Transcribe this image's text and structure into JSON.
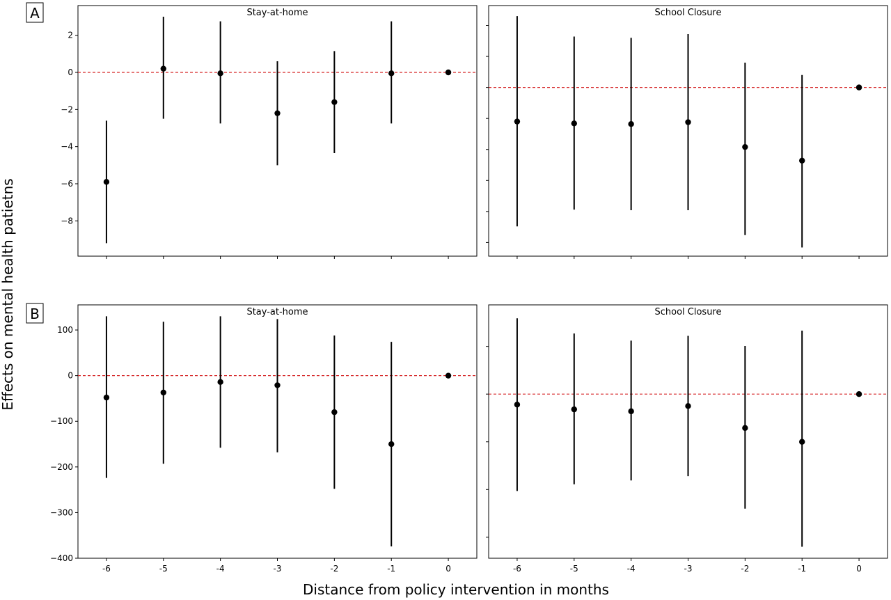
{
  "xlabel": "Distance from policy intervention in months",
  "ylabel": "Effects on mental health patietns",
  "chart_data": [
    {
      "type": "scatter",
      "panel": "A",
      "title": "Stay-at-home",
      "x": [
        -6,
        -5,
        -4,
        -3,
        -2,
        -1,
        0
      ],
      "y": [
        -5.9,
        0.2,
        -0.05,
        -2.2,
        -1.6,
        -0.05,
        0
      ],
      "ci_low": [
        -9.2,
        -2.5,
        -2.75,
        -5.0,
        -4.35,
        -2.75,
        0
      ],
      "ci_high": [
        -2.6,
        3.0,
        2.75,
        0.6,
        1.15,
        2.75,
        0
      ],
      "xlim": [
        -6.5,
        0.5
      ],
      "ylim": [
        -9.9,
        3.6
      ],
      "yticks": [
        2,
        0,
        -2,
        -4,
        -6,
        -8
      ],
      "yticklabels": [
        "2",
        "0",
        "−2",
        "−4",
        "−6",
        "−8"
      ],
      "reference_line": 0,
      "show_yticklabels": true
    },
    {
      "type": "scatter",
      "panel": "A",
      "title": "School Closure",
      "x": [
        -6,
        -5,
        -4,
        -3,
        -2,
        -1,
        0
      ],
      "y": [
        -2.75,
        -2.9,
        -2.95,
        -2.8,
        -4.8,
        -5.9,
        0
      ],
      "ci_low": [
        -11.2,
        -9.85,
        -9.9,
        -9.9,
        -11.9,
        -12.9,
        0
      ],
      "ci_high": [
        5.75,
        4.1,
        4.0,
        4.3,
        2.0,
        1.0,
        0
      ],
      "xlim": [
        -6.5,
        0.5
      ],
      "ylim": [
        -13.6,
        6.6
      ],
      "yticks": [
        5,
        2.5,
        0,
        -2.5,
        -5,
        -7.5,
        -10,
        -12.5
      ],
      "reference_line": 0,
      "show_yticklabels": false
    },
    {
      "type": "scatter",
      "panel": "B",
      "title": "Stay-at-home",
      "x": [
        -6,
        -5,
        -4,
        -3,
        -2,
        -1,
        0
      ],
      "y": [
        -48,
        -37,
        -14,
        -21,
        -80,
        -150,
        0
      ],
      "ci_low": [
        -224,
        -193,
        -158,
        -168,
        -248,
        -374,
        0
      ],
      "ci_high": [
        130,
        118,
        130,
        124,
        88,
        74,
        0
      ],
      "xlim": [
        -6.5,
        0.5
      ],
      "ylim": [
        -400,
        155
      ],
      "yticks": [
        100,
        0,
        -100,
        -200,
        -300,
        -400
      ],
      "yticklabels": [
        "100",
        "0",
        "−100",
        "−200",
        "−300",
        "−400"
      ],
      "reference_line": 0,
      "show_yticklabels": true
    },
    {
      "type": "scatter",
      "panel": "B",
      "title": "School Closure",
      "x": [
        -6,
        -5,
        -4,
        -3,
        -2,
        -1,
        0
      ],
      "y": [
        -22,
        -32,
        -36,
        -25,
        -71,
        -100,
        0
      ],
      "ci_low": [
        -203,
        -189,
        -181,
        -172,
        -240,
        -320,
        0
      ],
      "ci_high": [
        159,
        127,
        112,
        122,
        101,
        133,
        0
      ],
      "xlim": [
        -6.5,
        0.5
      ],
      "ylim": [
        -344,
        187
      ],
      "yticks": [
        100,
        0,
        -100,
        -200,
        -300
      ],
      "reference_line": 0,
      "show_yticklabels": false
    }
  ],
  "xticklabels": [
    "-6",
    "-5",
    "-4",
    "-3",
    "-2",
    "-1",
    "0"
  ],
  "colors": {
    "reference_line": "#d62728",
    "marks": "#000000"
  }
}
